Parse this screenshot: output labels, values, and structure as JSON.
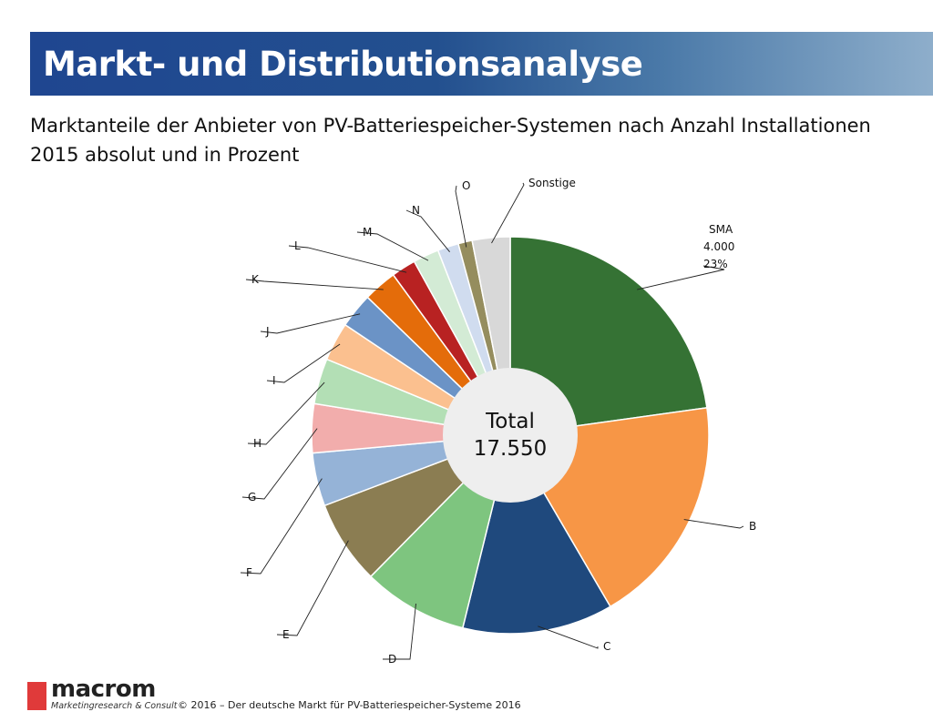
{
  "header": {
    "title": "Markt- und Distributionsanalyse"
  },
  "subtitle": {
    "line1": "Marktanteile der Anbieter von PV-Batteriespeicher-Systemen nach Anzahl Installationen",
    "line2": "2015 absolut und in Prozent"
  },
  "chart_data": {
    "type": "pie",
    "categories": [
      "SMA",
      "B",
      "C",
      "D",
      "E",
      "F",
      "G",
      "H",
      "I",
      "J",
      "K",
      "L",
      "M",
      "N",
      "O",
      "Sonstige"
    ],
    "values": [
      4000,
      3300,
      2150,
      1500,
      1200,
      760,
      700,
      650,
      550,
      500,
      480,
      350,
      370,
      300,
      200,
      540
    ],
    "colors": [
      "#357234",
      "#f79646",
      "#1f497d",
      "#7ec57f",
      "#8b7d52",
      "#95b3d7",
      "#f2adac",
      "#b3dfb5",
      "#fbc08f",
      "#6b93c6",
      "#e46c0a",
      "#b82222",
      "#d3ebd5",
      "#d0dcef",
      "#958d5e",
      "#d8d8d8"
    ],
    "labels": {
      "SMA": {
        "name": "SMA",
        "value": "4.000",
        "percent": "23%"
      }
    },
    "center": {
      "line1": "Total",
      "line2": "17.550"
    }
  },
  "footer": {
    "logo_word": "macrom",
    "logo_tagline": "Marketingresearch & Consult",
    "copyright": "© 2016 – Der deutsche Markt für PV-Batteriespeicher-Systeme 2016"
  }
}
